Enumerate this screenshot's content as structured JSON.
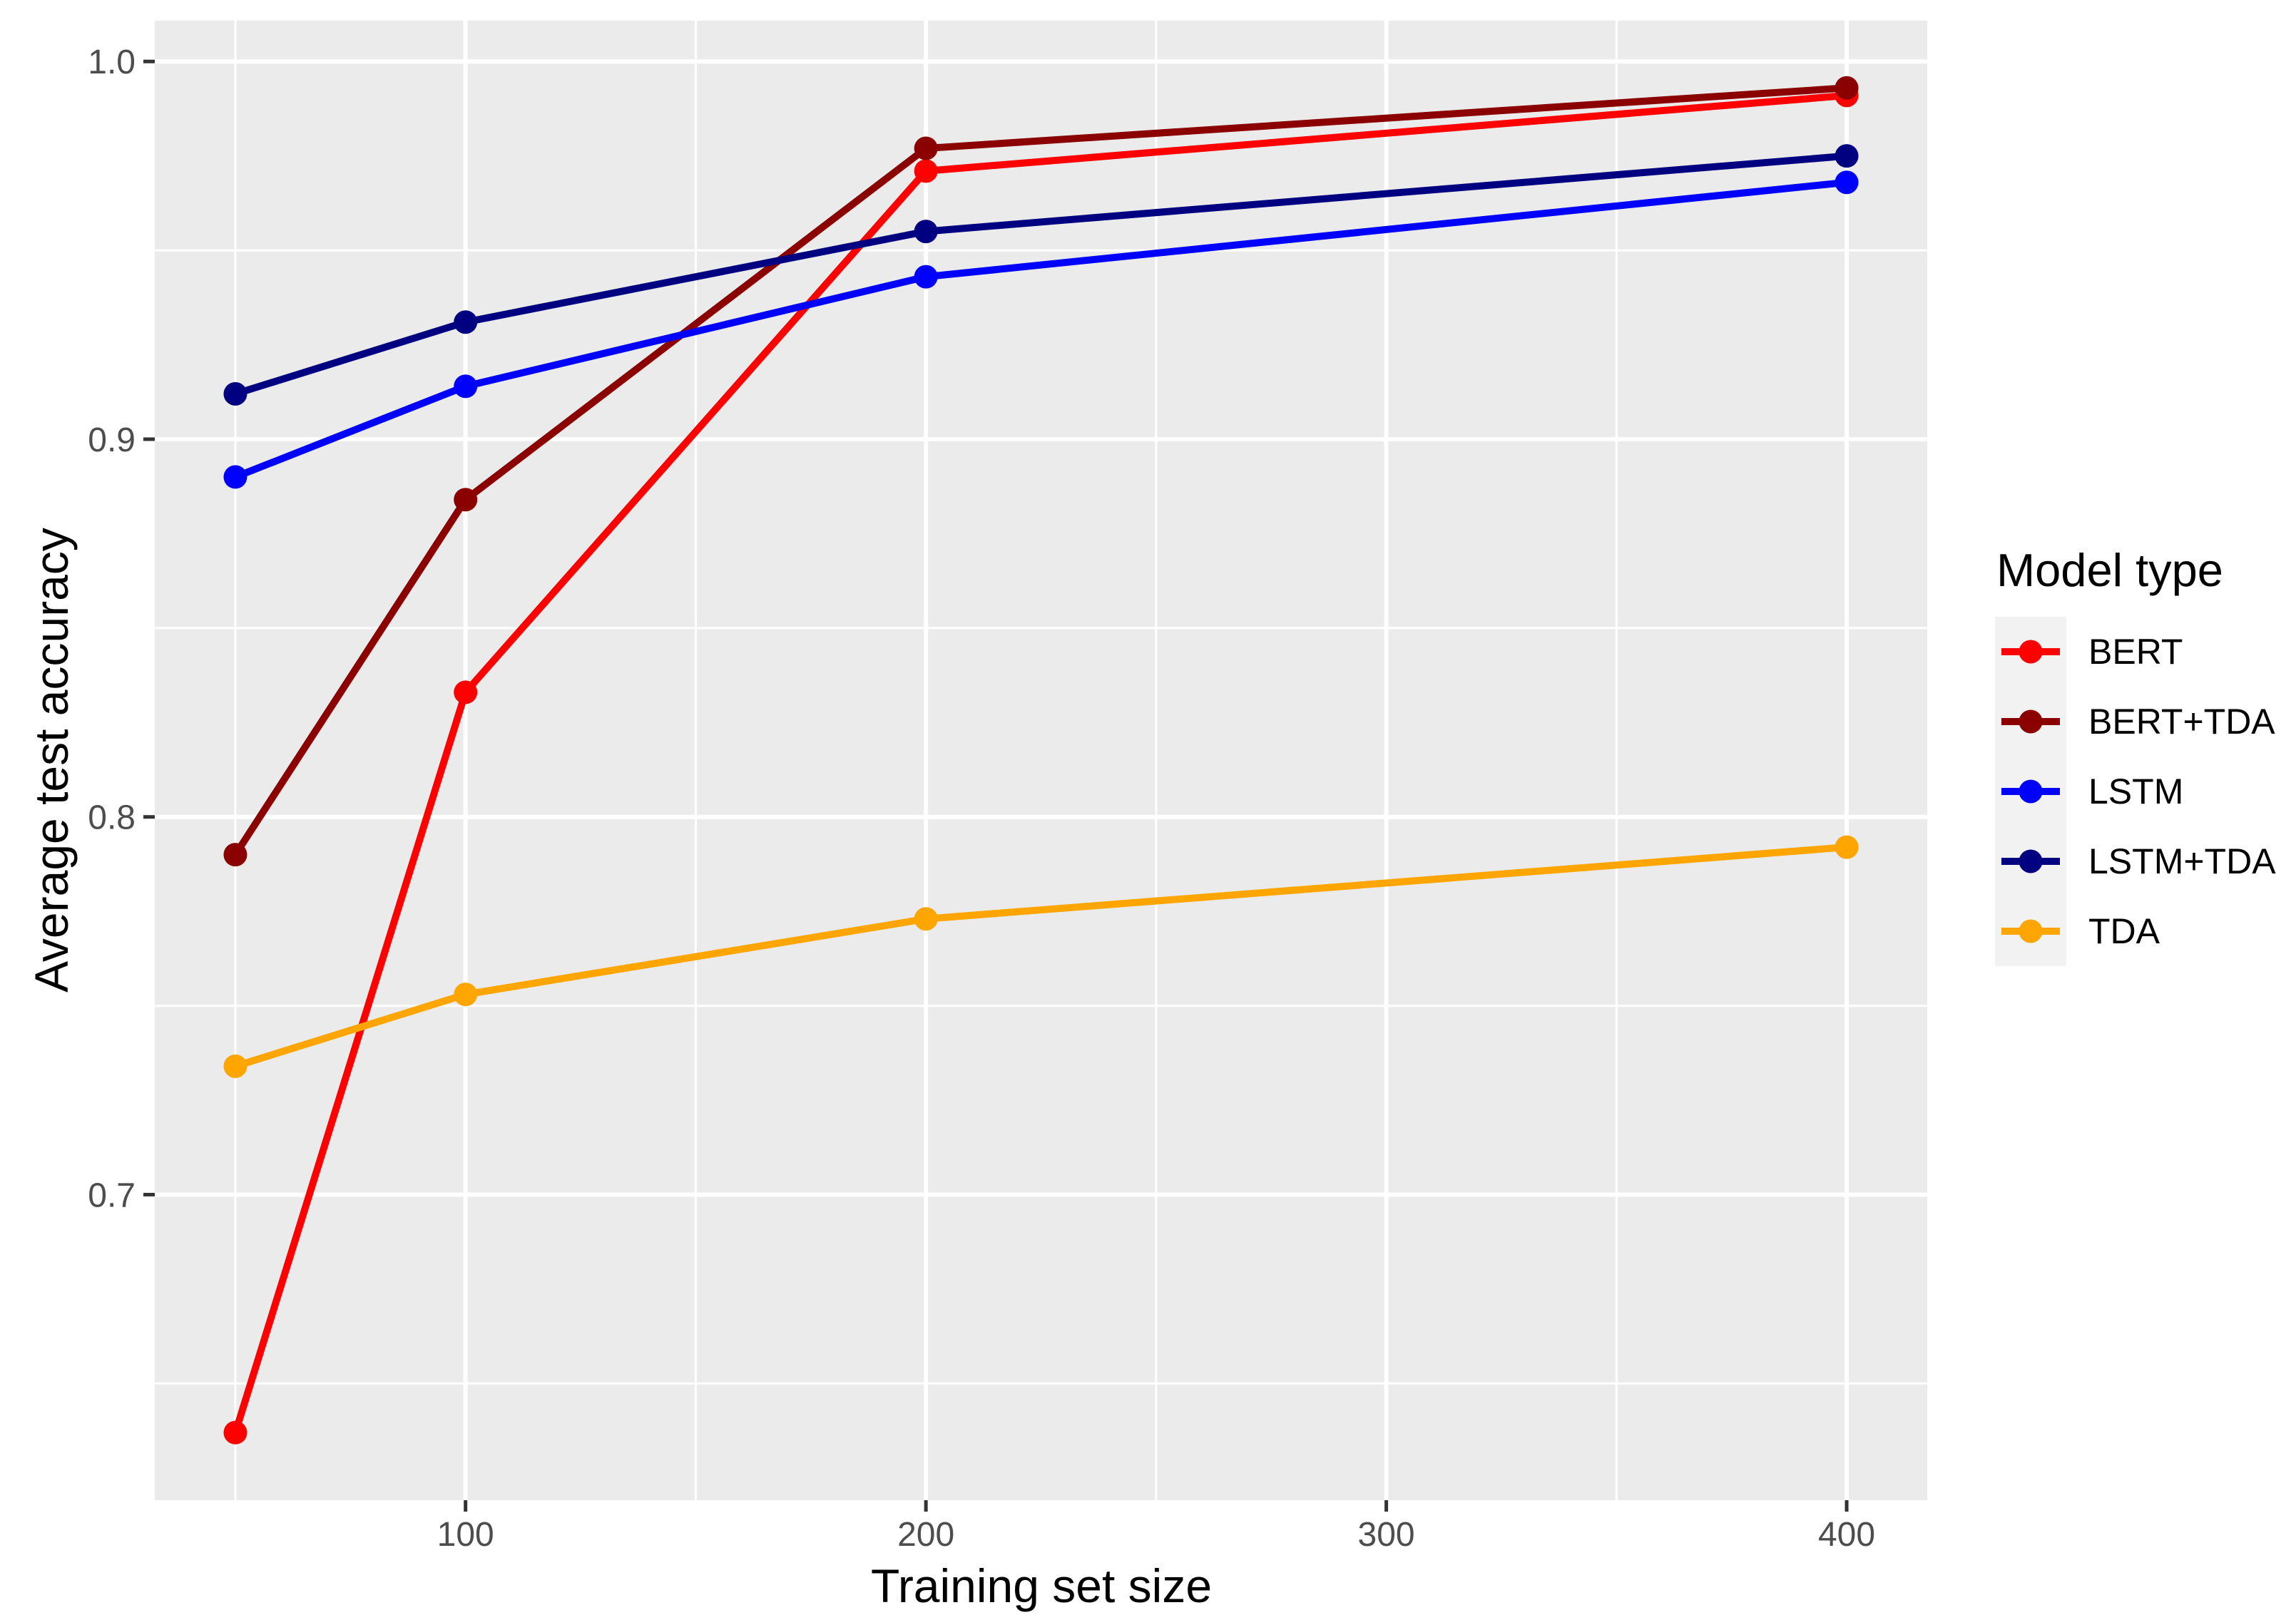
{
  "chart_data": {
    "type": "line",
    "x": [
      50,
      100,
      200,
      400
    ],
    "series": [
      {
        "name": "BERT",
        "color": "#FF0000",
        "values": [
          0.637,
          0.833,
          0.971,
          0.991
        ]
      },
      {
        "name": "BERT+TDA",
        "color": "#8B0000",
        "values": [
          0.79,
          0.884,
          0.977,
          0.993
        ]
      },
      {
        "name": "LSTM",
        "color": "#0000FF",
        "values": [
          0.89,
          0.914,
          0.943,
          0.968
        ]
      },
      {
        "name": "LSTM+TDA",
        "color": "#000080",
        "values": [
          0.912,
          0.931,
          0.955,
          0.975
        ]
      },
      {
        "name": "TDA",
        "color": "#FFA500",
        "values": [
          0.734,
          0.753,
          0.773,
          0.792
        ]
      }
    ],
    "title": "",
    "xlabel": "Training set size",
    "ylabel": "Average test accuracy",
    "legend_title": "Model type",
    "legend_position": "right",
    "xlim": [
      32.5,
      417.5
    ],
    "ylim": [
      0.6191,
      1.0108
    ],
    "x_ticks": [
      100,
      200,
      300,
      400
    ],
    "x_tick_labels": [
      "100",
      "200",
      "300",
      "400"
    ],
    "x_minor_ticks": [
      50,
      150,
      250,
      350
    ],
    "y_ticks": [
      0.7,
      0.8,
      0.9,
      1.0
    ],
    "y_tick_labels": [
      "0.7",
      "0.8",
      "0.9",
      "1.0"
    ],
    "y_minor_ticks": [
      0.65,
      0.75,
      0.85,
      0.95
    ],
    "grid": true,
    "colors": {
      "panel_bg": "#EBEBEB",
      "grid": "#FFFFFF",
      "tick_label": "#4D4D4D",
      "tick_mark": "#333333",
      "axis_title": "#000000",
      "legend_key_bg": "#F2F2F2"
    }
  }
}
